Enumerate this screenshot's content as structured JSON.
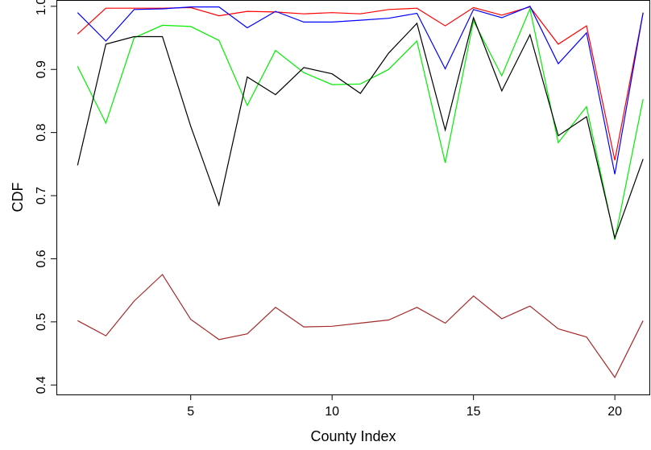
{
  "chart_data": {
    "type": "line",
    "title": "",
    "xlabel": "County Index",
    "ylabel": "CDF",
    "xlim": [
      0.25,
      21.25
    ],
    "ylim": [
      0.385,
      1.01
    ],
    "x_ticks": [
      5,
      10,
      15,
      20
    ],
    "y_ticks": [
      0.4,
      0.5,
      0.6,
      0.7,
      0.8,
      0.9,
      1.0
    ],
    "y_tick_labels": [
      "0.4",
      "0.5",
      "0.6",
      "0.7",
      "0.8",
      "0.9",
      "1.0"
    ],
    "grid": false,
    "legend": "none",
    "x": [
      1,
      2,
      3,
      4,
      5,
      6,
      7,
      8,
      9,
      10,
      11,
      12,
      13,
      14,
      15,
      16,
      17,
      18,
      19,
      20,
      21
    ],
    "series": [
      {
        "color": "#ff0000",
        "values": [
          0.956,
          0.997,
          0.997,
          0.997,
          0.998,
          0.985,
          0.992,
          0.991,
          0.988,
          0.99,
          0.988,
          0.995,
          0.997,
          0.969,
          0.998,
          0.986,
          0.999,
          0.94,
          0.969,
          0.756,
          0.99
        ]
      },
      {
        "color": "#0000ff",
        "values": [
          0.99,
          0.945,
          0.995,
          0.996,
          0.999,
          0.999,
          0.966,
          0.992,
          0.975,
          0.975,
          0.978,
          0.981,
          0.989,
          0.901,
          0.995,
          0.982,
          1.0,
          0.909,
          0.958,
          0.734,
          0.99
        ]
      },
      {
        "color": "#00ee00",
        "values": [
          0.905,
          0.815,
          0.95,
          0.97,
          0.968,
          0.946,
          0.843,
          0.93,
          0.895,
          0.876,
          0.877,
          0.9,
          0.945,
          0.752,
          0.977,
          0.89,
          0.996,
          0.784,
          0.841,
          0.63,
          0.853
        ]
      },
      {
        "color": "#000000",
        "values": [
          0.748,
          0.94,
          0.952,
          0.952,
          0.81,
          0.685,
          0.888,
          0.86,
          0.903,
          0.893,
          0.862,
          0.926,
          0.973,
          0.804,
          0.982,
          0.866,
          0.955,
          0.795,
          0.825,
          0.633,
          0.758
        ]
      },
      {
        "color": "#a52a2a",
        "values": [
          0.502,
          0.478,
          0.533,
          0.575,
          0.504,
          0.472,
          0.481,
          0.523,
          0.492,
          0.493,
          0.498,
          0.503,
          0.523,
          0.498,
          0.541,
          0.505,
          0.525,
          0.489,
          0.476,
          0.412,
          0.502
        ]
      }
    ]
  }
}
